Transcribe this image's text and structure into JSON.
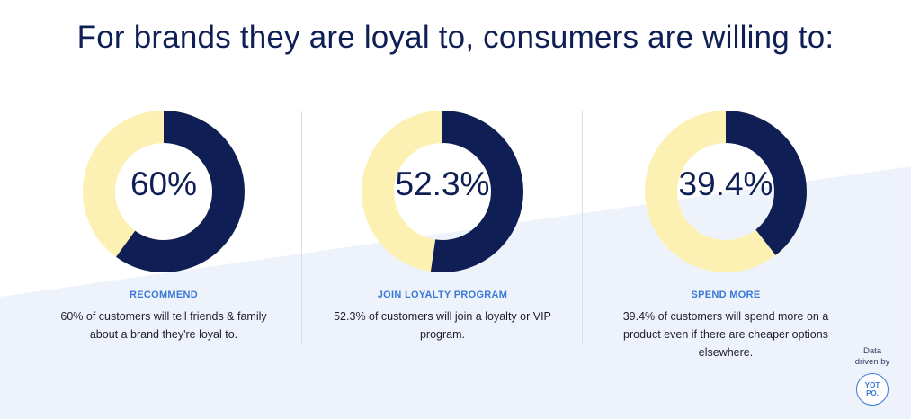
{
  "title": "For brands they are loyal to, consumers are willing to:",
  "colors": {
    "filled": "#0f1f55",
    "remainder": "#fcf1b2",
    "label": "#3a79d6",
    "background_accent": "#eef3fb"
  },
  "chart_data": [
    {
      "type": "pie",
      "style": "donut",
      "value": 60,
      "display": "60%",
      "label": "RECOMMEND",
      "description": "60% of customers will tell friends & family about a brand they're loyal to."
    },
    {
      "type": "pie",
      "style": "donut",
      "value": 52.3,
      "display": "52.3%",
      "label": "JOIN LOYALTY PROGRAM",
      "description": "52.3% of customers will join a loyalty or VIP program."
    },
    {
      "type": "pie",
      "style": "donut",
      "value": 39.4,
      "display": "39.4%",
      "label": "SPEND MORE",
      "description": "39.4% of customers will spend more on a product even if there are cheaper options elsewhere."
    }
  ],
  "credit": {
    "line1": "Data",
    "line2": "driven by",
    "logo_line1": "YOT",
    "logo_line2": "PO."
  }
}
